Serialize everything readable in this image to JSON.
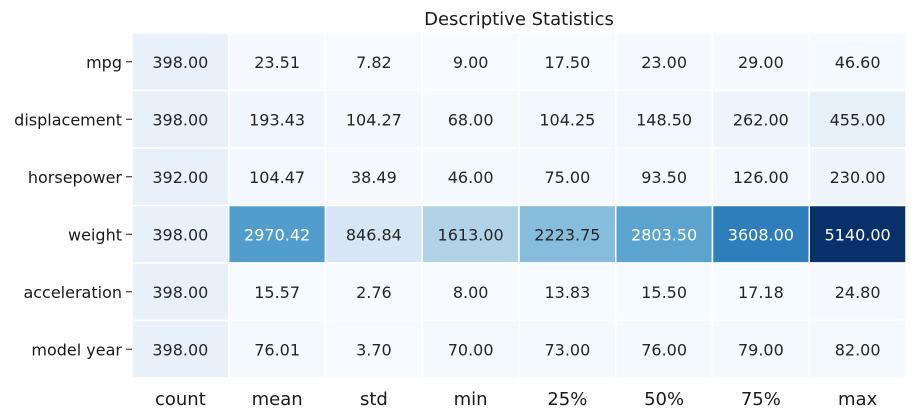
{
  "chart_data": {
    "type": "heatmap",
    "title": "Descriptive Statistics",
    "xlabel": "",
    "ylabel": "",
    "colormap": "Blues",
    "value_range": [
      0,
      5140.0
    ],
    "columns": [
      "count",
      "mean",
      "std",
      "min",
      "25%",
      "50%",
      "75%",
      "max"
    ],
    "rows": [
      "mpg",
      "displacement",
      "horsepower",
      "weight",
      "acceleration",
      "model year"
    ],
    "values": [
      [
        398.0,
        23.51,
        7.82,
        9.0,
        17.5,
        23.0,
        29.0,
        46.6
      ],
      [
        398.0,
        193.43,
        104.27,
        68.0,
        104.25,
        148.5,
        262.0,
        455.0
      ],
      [
        392.0,
        104.47,
        38.49,
        46.0,
        75.0,
        93.5,
        126.0,
        230.0
      ],
      [
        398.0,
        2970.42,
        846.84,
        1613.0,
        2223.75,
        2803.5,
        3608.0,
        5140.0
      ],
      [
        398.0,
        15.57,
        2.76,
        8.0,
        13.83,
        15.5,
        17.18,
        24.8
      ],
      [
        398.0,
        76.01,
        3.7,
        70.0,
        73.0,
        76.0,
        79.0,
        82.0
      ]
    ],
    "cell_labels": [
      [
        "398.00",
        "23.51",
        "7.82",
        "9.00",
        "17.50",
        "23.00",
        "29.00",
        "46.60"
      ],
      [
        "398.00",
        "193.43",
        "104.27",
        "68.00",
        "104.25",
        "148.50",
        "262.00",
        "455.00"
      ],
      [
        "392.00",
        "104.47",
        "38.49",
        "46.00",
        "75.00",
        "93.50",
        "126.00",
        "230.00"
      ],
      [
        "398.00",
        "2970.42",
        "846.84",
        "1613.00",
        "2223.75",
        "2803.50",
        "3608.00",
        "5140.00"
      ],
      [
        "398.00",
        "15.57",
        "2.76",
        "8.00",
        "13.83",
        "15.50",
        "17.18",
        "24.80"
      ],
      [
        "398.00",
        "76.01",
        "3.70",
        "70.00",
        "73.00",
        "76.00",
        "79.00",
        "82.00"
      ]
    ],
    "colorbar": false,
    "cell_borders_color": "#ffffff"
  }
}
